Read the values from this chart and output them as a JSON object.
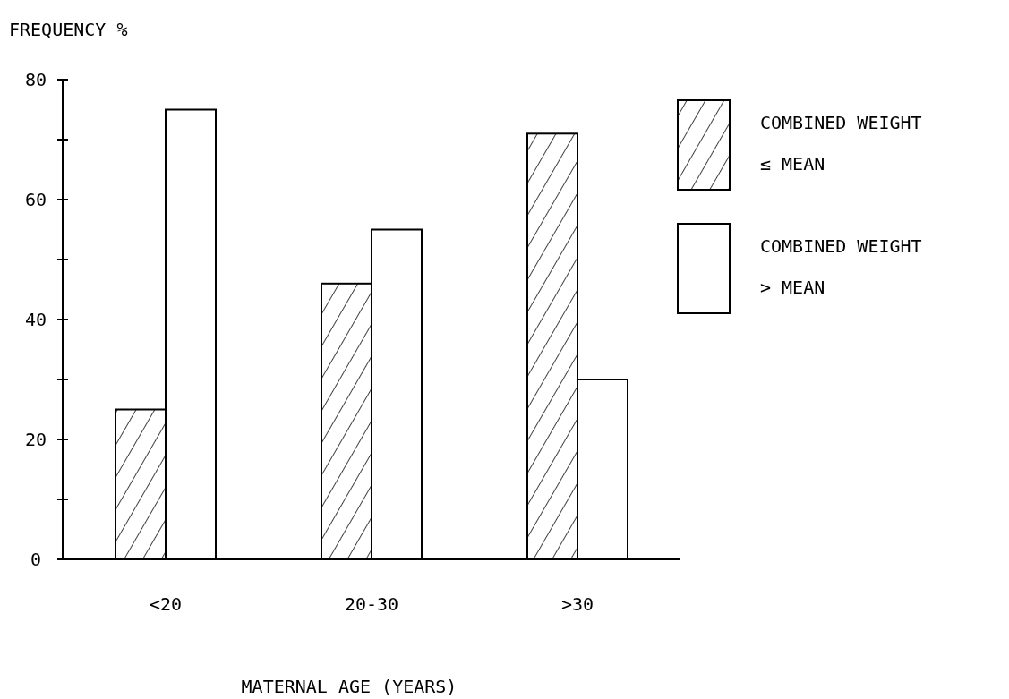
{
  "chart_data": {
    "type": "bar",
    "ylabel": "FREQUENCY %",
    "xlabel": "MATERNAL AGE (YEARS)",
    "categories": [
      "<20",
      "20-30",
      ">30"
    ],
    "series": [
      {
        "name": "COMBINED WEIGHT ≤ MEAN",
        "color": "#000000",
        "values": [
          25,
          46,
          71
        ]
      },
      {
        "name": "COMBINED WEIGHT > MEAN",
        "color": "#ffffff",
        "values": [
          75,
          55,
          30
        ]
      }
    ],
    "ylim": [
      0,
      80
    ],
    "yticks": [
      0,
      {
        "value": 10,
        "label": null
      },
      20,
      {
        "value": 30,
        "label": null
      },
      40,
      {
        "value": 50,
        "label": null
      },
      60,
      {
        "value": 70,
        "label": null
      },
      80
    ],
    "legend": "top right",
    "grid": false
  }
}
